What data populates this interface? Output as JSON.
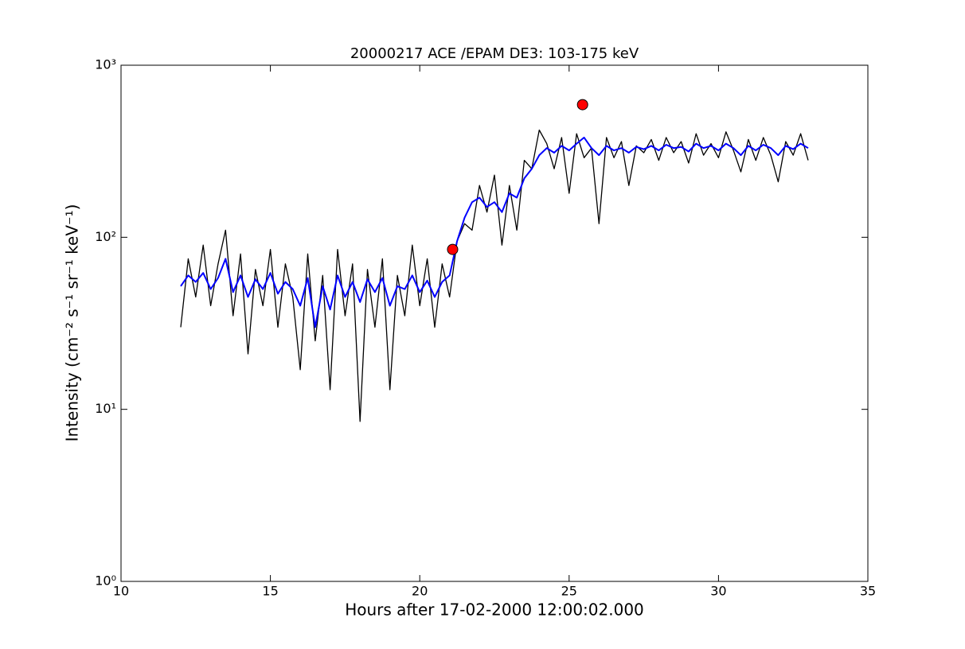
{
  "chart_data": {
    "type": "line",
    "title": "20000217 ACE /EPAM DE3: 103-175 keV",
    "xlabel": "Hours after 17-02-2000 12:00:02.000",
    "ylabel": "Intensity (cm⁻² s⁻¹ sr⁻¹ keV⁻¹)",
    "yscale": "log",
    "xlim": [
      10,
      35
    ],
    "xticks": [
      10,
      15,
      20,
      25,
      30,
      35
    ],
    "ylim": [
      1,
      1000
    ],
    "yticks": [
      {
        "value": 1,
        "label": "10⁰"
      },
      {
        "value": 10,
        "label": "10¹"
      },
      {
        "value": 100,
        "label": "10²"
      },
      {
        "value": 1000,
        "label": "10³"
      }
    ],
    "x": [
      12,
      12.25,
      12.5,
      12.75,
      13,
      13.25,
      13.5,
      13.75,
      14,
      14.25,
      14.5,
      14.75,
      15,
      15.25,
      15.5,
      15.75,
      16,
      16.25,
      16.5,
      16.75,
      17,
      17.25,
      17.5,
      17.75,
      18,
      18.25,
      18.5,
      18.75,
      19,
      19.25,
      19.5,
      19.75,
      20,
      20.25,
      20.5,
      20.75,
      21,
      21.25,
      21.5,
      21.75,
      22,
      22.25,
      22.5,
      22.75,
      23,
      23.25,
      23.5,
      23.75,
      24,
      24.25,
      24.5,
      24.75,
      25,
      25.25,
      25.5,
      25.75,
      26,
      26.25,
      26.5,
      26.75,
      27,
      27.25,
      27.5,
      27.75,
      28,
      28.25,
      28.5,
      28.75,
      29,
      29.25,
      29.5,
      29.75,
      30,
      30.25,
      30.5,
      30.75,
      31,
      31.25,
      31.5,
      31.75,
      32,
      32.25,
      32.5,
      32.75,
      33
    ],
    "series": [
      {
        "color": "#000000",
        "values": [
          30,
          75,
          45,
          90,
          40,
          70,
          110,
          35,
          80,
          21,
          65,
          40,
          85,
          30,
          70,
          45,
          17,
          80,
          25,
          60,
          13,
          85,
          35,
          70,
          8.5,
          65,
          30,
          75,
          13,
          60,
          35,
          90,
          40,
          75,
          30,
          70,
          45,
          95,
          120,
          110,
          200,
          140,
          230,
          90,
          200,
          110,
          280,
          250,
          420,
          350,
          250,
          380,
          180,
          400,
          290,
          330,
          120,
          380,
          290,
          360,
          200,
          340,
          310,
          370,
          280,
          380,
          310,
          360,
          270,
          400,
          300,
          350,
          290,
          410,
          320,
          240,
          370,
          280,
          380,
          300,
          210,
          360,
          300,
          400,
          280
        ]
      },
      {
        "color": "#0000ff",
        "values": [
          52,
          60,
          55,
          62,
          50,
          58,
          75,
          48,
          60,
          45,
          57,
          50,
          62,
          47,
          55,
          50,
          40,
          58,
          30,
          52,
          38,
          60,
          45,
          55,
          42,
          57,
          48,
          58,
          40,
          52,
          50,
          60,
          48,
          56,
          45,
          55,
          60,
          95,
          130,
          160,
          170,
          150,
          160,
          140,
          180,
          170,
          220,
          250,
          300,
          330,
          310,
          340,
          320,
          350,
          380,
          330,
          300,
          340,
          320,
          330,
          310,
          335,
          325,
          340,
          320,
          345,
          330,
          335,
          315,
          350,
          330,
          340,
          320,
          350,
          330,
          300,
          340,
          320,
          345,
          330,
          300,
          340,
          325,
          350,
          330
        ]
      }
    ],
    "markers": {
      "color": "#ff0000",
      "x": [
        21.1,
        25.45
      ],
      "values": [
        85,
        590
      ]
    }
  }
}
